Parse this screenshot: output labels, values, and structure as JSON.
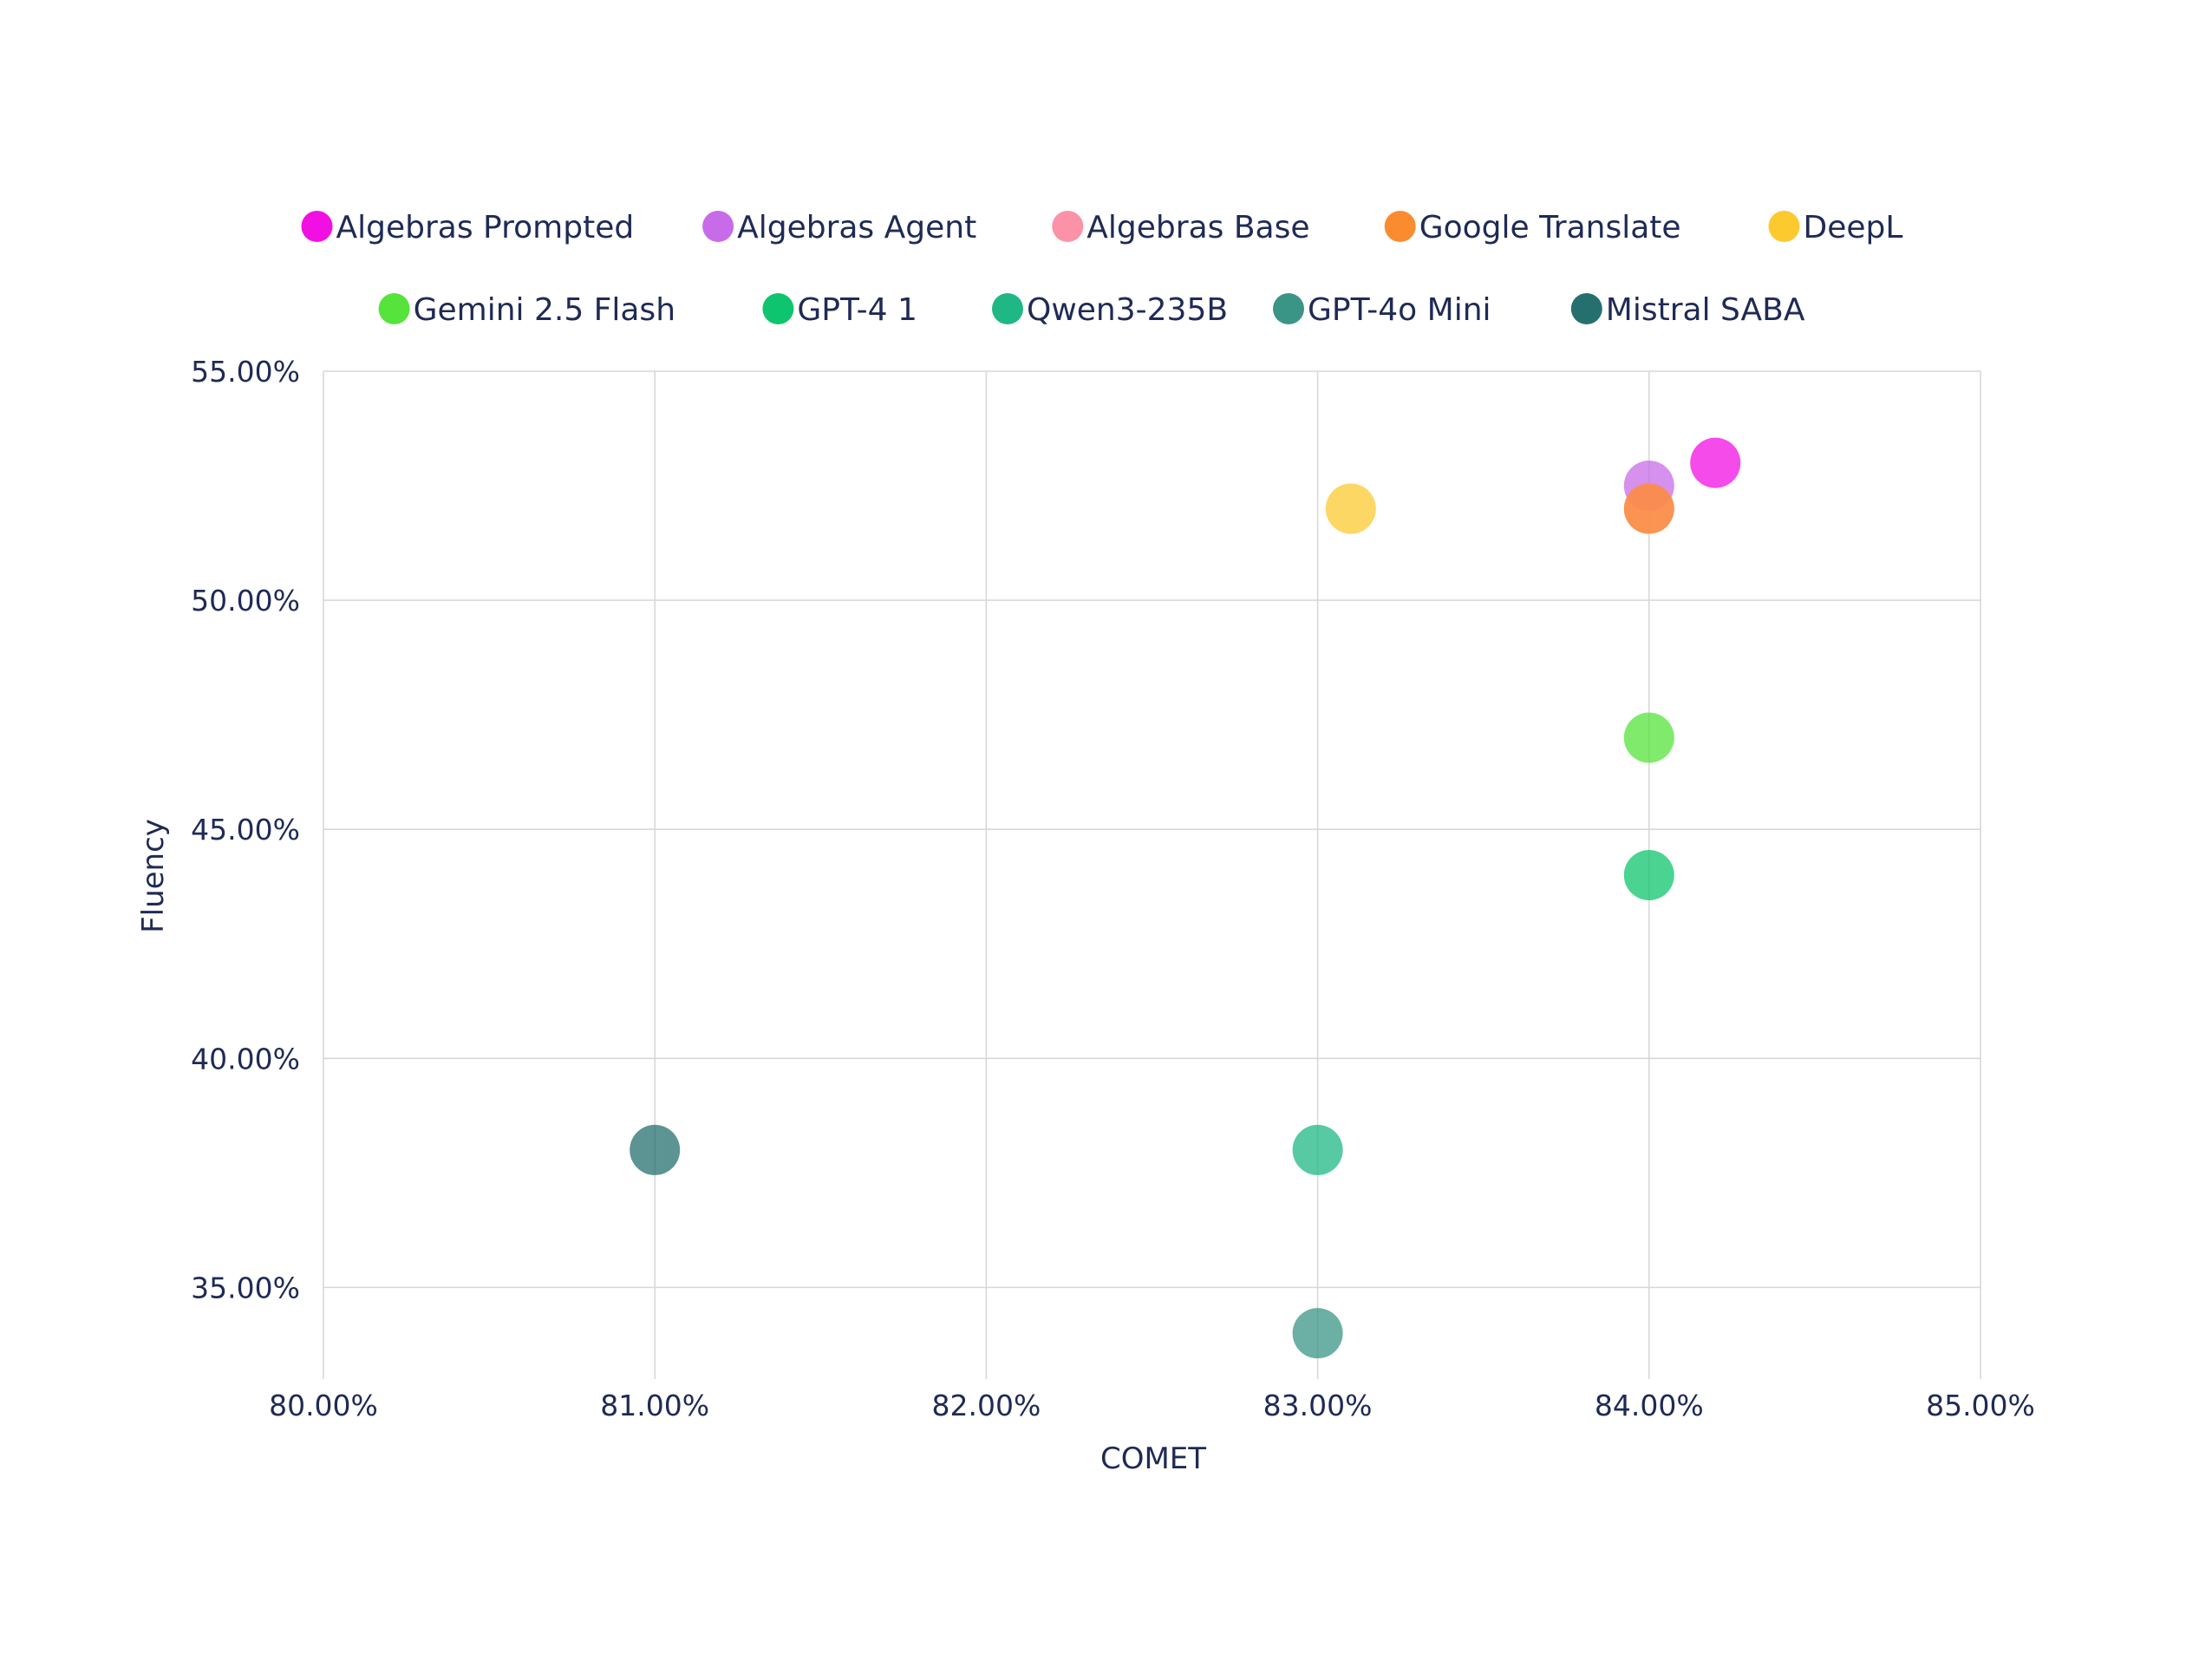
{
  "chart_data": {
    "type": "scatter",
    "title": "",
    "xlabel": "COMET",
    "ylabel": "Fluency",
    "xlim": [
      80,
      85
    ],
    "ylim": [
      33,
      55
    ],
    "x_ticks": [
      80,
      81,
      82,
      83,
      84,
      85
    ],
    "y_ticks": [
      35,
      40,
      45,
      50,
      55
    ],
    "x_tick_labels": [
      "80.00%",
      "81.00%",
      "82.00%",
      "83.00%",
      "84.00%",
      "85.00%"
    ],
    "y_tick_labels": [
      "35.00%",
      "40.00%",
      "45.00%",
      "50.00%",
      "55.00%"
    ],
    "grid": true,
    "legend_position": "top",
    "series": [
      {
        "name": "Algebras Prompted",
        "color": "#f20fe3",
        "x": 84.2,
        "y": 53.0
      },
      {
        "name": "Algebras Agent",
        "color": "#c86be8",
        "x": 84.0,
        "y": 52.5
      },
      {
        "name": "Algebras Base",
        "color": "#fb92a8",
        "x": 84.0,
        "y": 52.0
      },
      {
        "name": "Google Translate",
        "color": "#fb8b2f",
        "x": 84.0,
        "y": 52.0
      },
      {
        "name": "DeepL",
        "color": "#fcc92f",
        "x": 83.1,
        "y": 52.0
      },
      {
        "name": "Gemini 2.5 Flash",
        "color": "#56e33c",
        "x": 84.0,
        "y": 47.0
      },
      {
        "name": "GPT-4 1",
        "color": "#0fc46e",
        "x": 84.0,
        "y": 44.0
      },
      {
        "name": "Qwen3-235B",
        "color": "#1fb885",
        "x": 83.0,
        "y": 38.0
      },
      {
        "name": "GPT-4o Mini",
        "color": "#3b9587",
        "x": 83.0,
        "y": 34.0
      },
      {
        "name": "Mistral SABA",
        "color": "#25706f",
        "x": 81.0,
        "y": 38.0
      }
    ]
  }
}
